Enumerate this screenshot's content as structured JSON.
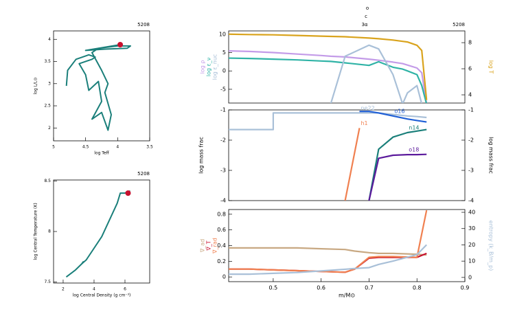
{
  "chart_data": [
    {
      "type": "line",
      "title": "5208",
      "xlabel": "log Teff",
      "ylabel": "log L/L⊙",
      "xlim": [
        5,
        3.5
      ],
      "xticks": [
        5,
        4.5,
        4,
        3.5
      ],
      "ylim": [
        1.71,
        4.19
      ],
      "yticks": [
        2,
        2.5,
        3,
        3.5,
        4
      ],
      "x": [
        4.8,
        4.78,
        4.65,
        4.45,
        4.35,
        4.4,
        4.6,
        4.5,
        4.45,
        4.3,
        4.25,
        4.4,
        4.25,
        4.15,
        4.1,
        4.2,
        4.15,
        4.25,
        4.4,
        4.3,
        4.0,
        3.8,
        3.85,
        4.2,
        4.5,
        3.96
      ],
      "series": [
        {
          "color": "#1a7f7a",
          "values": [
            2.95,
            3.3,
            3.55,
            3.65,
            3.6,
            3.55,
            3.45,
            3.2,
            2.85,
            3.05,
            2.6,
            2.2,
            2.35,
            1.95,
            2.3,
            2.8,
            3.0,
            3.3,
            3.7,
            3.8,
            3.85,
            3.85,
            3.8,
            3.78,
            3.75,
            3.88
          ]
        }
      ],
      "marker": {
        "x": 3.96,
        "y": 3.88,
        "color": "#c8102e"
      }
    },
    {
      "type": "line",
      "title": "5208",
      "xlabel": "log Central Density (g cm⁻³)",
      "ylabel": "log Central Temperature (K)",
      "xlim": [
        1.38,
        7.6
      ],
      "xticks": [
        2,
        4,
        6
      ],
      "ylim": [
        7.49,
        8.51
      ],
      "yticks": [
        7.5,
        8,
        8.5
      ],
      "x": [
        2.2,
        2.8,
        3.2,
        3.3,
        3.2,
        3.5,
        4.5,
        5.5,
        5.7,
        6,
        6.3,
        6.2
      ],
      "series": [
        {
          "color": "#1a7f7a",
          "values": [
            7.55,
            7.62,
            7.68,
            7.7,
            7.68,
            7.72,
            7.95,
            8.28,
            8.38,
            8.38,
            8.4,
            8.38
          ]
        }
      ],
      "marker": {
        "x": 6.2,
        "y": 8.38,
        "color": "#c8102e"
      }
    },
    {
      "type": "line",
      "title": "5208",
      "annotations": [
        "o",
        "c",
        "3α"
      ],
      "legend": "left",
      "xlim": [
        0.407,
        0.9
      ],
      "ylim": [
        -8.75,
        10.9
      ],
      "yticks": [
        -5,
        0,
        5,
        10
      ],
      "y2lim": [
        3.37,
        8.9
      ],
      "y2ticks": [
        4,
        6,
        8
      ],
      "x": [
        0.4,
        0.45,
        0.5,
        0.55,
        0.6,
        0.62,
        0.65,
        0.7,
        0.72,
        0.75,
        0.77,
        0.78,
        0.8,
        0.81,
        0.82
      ],
      "series": [
        {
          "name": "log ρ",
          "color": "#c39be8",
          "values": [
            5.5,
            5.3,
            5,
            4.6,
            4.2,
            4,
            3.8,
            3.2,
            2.9,
            2.4,
            2,
            1.6,
            0.8,
            -0.5,
            -9
          ]
        },
        {
          "name": "log ε_ν",
          "color": "#2fb3a6",
          "values": [
            3.5,
            3.4,
            3.2,
            3,
            2.7,
            2.6,
            2.2,
            1.5,
            2.5,
            1,
            0.5,
            0,
            -1,
            -4,
            -9
          ]
        },
        {
          "name": "log ε_nuc",
          "color": "#a9c0d8",
          "values": [
            null,
            null,
            null,
            null,
            null,
            -9,
            4,
            7,
            6,
            -1,
            -9,
            -6,
            -4,
            -9,
            null
          ]
        },
        {
          "name": "log T",
          "color": "#d9a31c",
          "axis": "y2",
          "values": [
            8.65,
            8.62,
            8.6,
            8.55,
            8.5,
            8.48,
            8.45,
            8.35,
            8.3,
            8.2,
            8.1,
            8.05,
            7.8,
            7.4,
            3.6
          ]
        }
      ]
    },
    {
      "type": "line",
      "ylabel": "log mass frac",
      "y2label": "log mass frac",
      "legend": "inline",
      "xlim": [
        0.407,
        0.9
      ],
      "ylim": [
        -4,
        -1
      ],
      "yticks": [
        -1,
        -2,
        -3,
        -4
      ],
      "y2lim": [
        -4,
        -1
      ],
      "y2ticks": [
        -1,
        -2,
        -3,
        -4
      ],
      "x": [
        0.4,
        0.5,
        0.5,
        0.55,
        0.6,
        0.65,
        0.68,
        0.7,
        0.72,
        0.75,
        0.78,
        0.8,
        0.82
      ],
      "series": [
        {
          "name": "ne22",
          "color": "#a9c0d8",
          "values": [
            -1.65,
            -1.65,
            -1.1,
            -1.1,
            -1.1,
            -1.1,
            -1.1,
            -1.1,
            -1.1,
            -1.15,
            -1.2,
            -1.22,
            -1.25
          ]
        },
        {
          "name": "o16",
          "color": "#1f5fd6",
          "values": [
            null,
            null,
            null,
            null,
            null,
            null,
            -1.05,
            -1.05,
            -1.1,
            -1.2,
            -1.3,
            -1.35,
            -1.4
          ]
        },
        {
          "name": "n14",
          "color": "#1a7f7a",
          "values": [
            null,
            null,
            null,
            null,
            null,
            null,
            null,
            -4,
            -2.3,
            -1.9,
            -1.75,
            -1.7,
            -1.65
          ]
        },
        {
          "name": "o18",
          "color": "#5b1a9c",
          "values": [
            null,
            null,
            null,
            null,
            null,
            null,
            null,
            -4,
            -2.6,
            -2.5,
            -2.48,
            -2.48,
            -2.47
          ]
        },
        {
          "name": "h1",
          "color": "#f08050",
          "values": [
            null,
            null,
            null,
            null,
            null,
            -4,
            -1.6,
            null,
            null,
            null,
            null,
            null,
            null
          ]
        }
      ]
    },
    {
      "type": "line",
      "xlabel": "m/M⊙",
      "legend": "left",
      "xlim": [
        0.407,
        0.9
      ],
      "xticks": [
        0.5,
        0.6,
        0.7,
        0.8,
        0.9
      ],
      "ylim": [
        -0.06,
        0.86
      ],
      "yticks": [
        0,
        0.2,
        0.4,
        0.6,
        0.8
      ],
      "y2lim": [
        -2.6,
        41.7
      ],
      "y2ticks": [
        0,
        10,
        20,
        30,
        40
      ],
      "x": [
        0.4,
        0.45,
        0.5,
        0.55,
        0.6,
        0.65,
        0.67,
        0.7,
        0.72,
        0.75,
        0.8,
        0.82
      ],
      "series": [
        {
          "name": "∇_ad",
          "color": "#c8a882",
          "values": [
            0.37,
            0.37,
            0.37,
            0.37,
            0.36,
            0.35,
            0.33,
            0.31,
            0.3,
            0.3,
            0.29,
            0.28
          ]
        },
        {
          "name": "∇_T",
          "color": "#c8102e",
          "values": [
            0.1,
            0.1,
            0.09,
            0.08,
            0.07,
            0.06,
            0.1,
            0.24,
            0.25,
            0.25,
            0.25,
            0.3
          ]
        },
        {
          "name": "∇_rad",
          "color": "#f08050",
          "values": [
            0.1,
            0.1,
            0.09,
            0.08,
            0.07,
            0.06,
            0.1,
            0.25,
            0.26,
            0.26,
            0.25,
            0.85
          ]
        },
        {
          "name": "entropy (k_B/m_p)",
          "color": "#a9c0d8",
          "axis": "y2",
          "values": [
            2,
            2,
            2.5,
            3,
            4,
            5,
            5.5,
            6,
            8,
            10,
            14,
            20
          ]
        }
      ]
    }
  ]
}
